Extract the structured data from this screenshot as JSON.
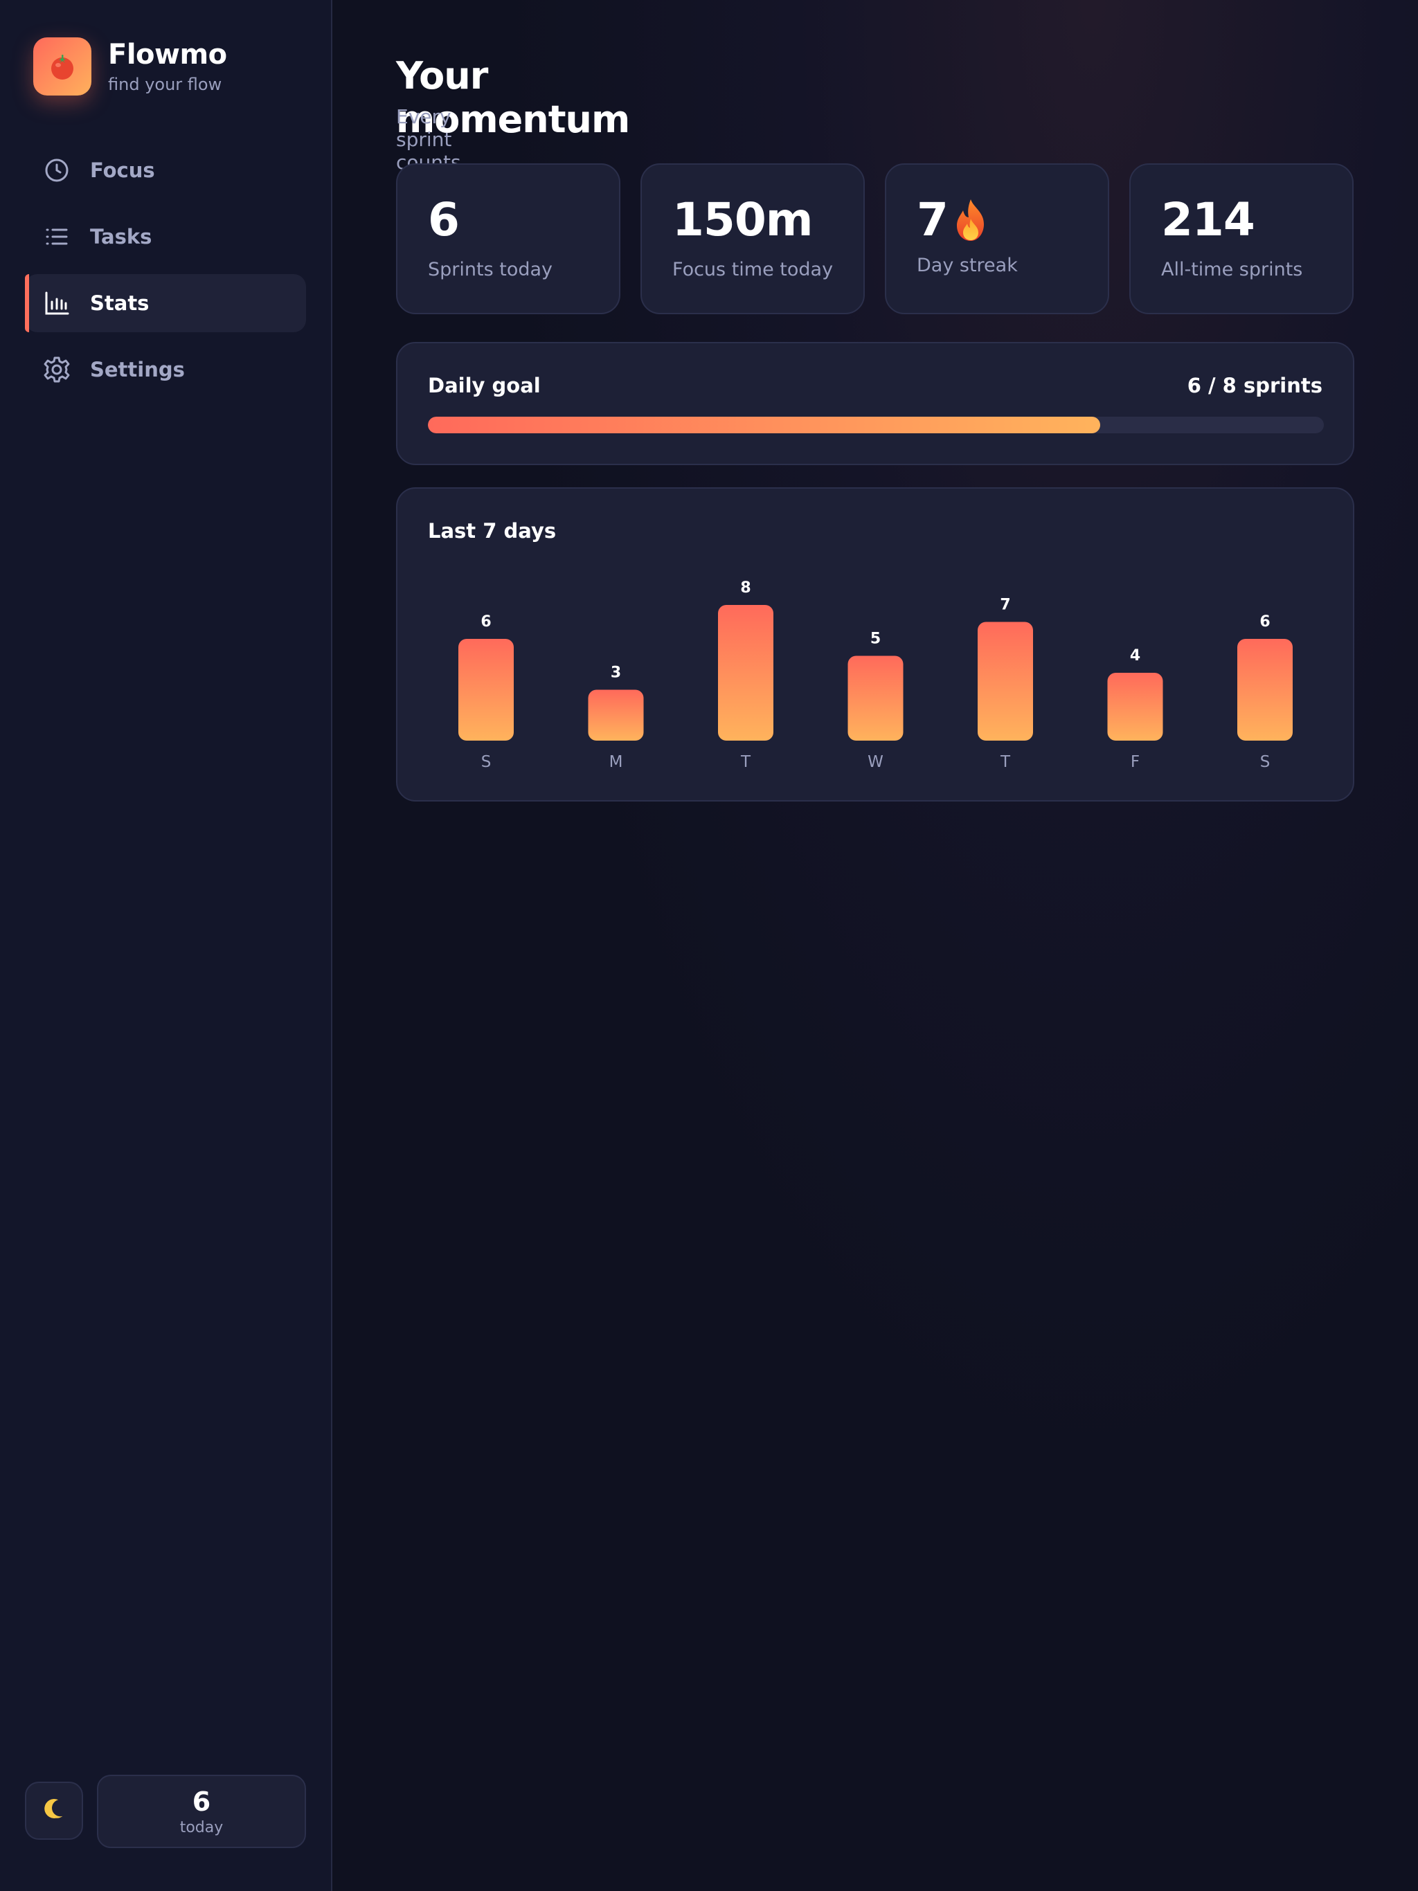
{
  "brand": {
    "name": "Flowmo",
    "tagline": "find your flow",
    "logo_icon": "tomato-icon"
  },
  "sidebar": {
    "items": [
      {
        "label": "Focus",
        "icon": "clock-icon",
        "active": false
      },
      {
        "label": "Tasks",
        "icon": "list-icon",
        "active": false
      },
      {
        "label": "Stats",
        "icon": "bar-chart-icon",
        "active": true
      },
      {
        "label": "Settings",
        "icon": "gear-icon",
        "active": false
      }
    ],
    "footer": {
      "theme_icon": "moon-icon",
      "today_count": "6",
      "today_label": "today"
    }
  },
  "main": {
    "title": "Your momentum",
    "subtitle": "Every sprint counts. Keep the streak alive.",
    "stats": [
      {
        "value": "6",
        "label": "Sprints today"
      },
      {
        "value": "150m",
        "label": "Focus time today"
      },
      {
        "value": "7",
        "label": "Day streak",
        "icon": "flame-icon"
      },
      {
        "value": "214",
        "label": "All-time sprints"
      }
    ],
    "goal": {
      "title": "Daily goal",
      "value_text": "6 / 8 sprints",
      "current": 6,
      "target": 8
    }
  },
  "colors": {
    "accent_start": "#ff6a5b",
    "accent_end": "#ffb35c",
    "card_bg": "#1d2036",
    "page_bg": "#0f1120"
  },
  "chart_data": {
    "type": "bar",
    "title": "Last 7 days",
    "categories": [
      "S",
      "M",
      "T",
      "W",
      "T",
      "F",
      "S"
    ],
    "values": [
      6,
      3,
      8,
      5,
      7,
      4,
      6
    ],
    "ylim": [
      0,
      8
    ],
    "grid": false,
    "data_labels": true
  }
}
